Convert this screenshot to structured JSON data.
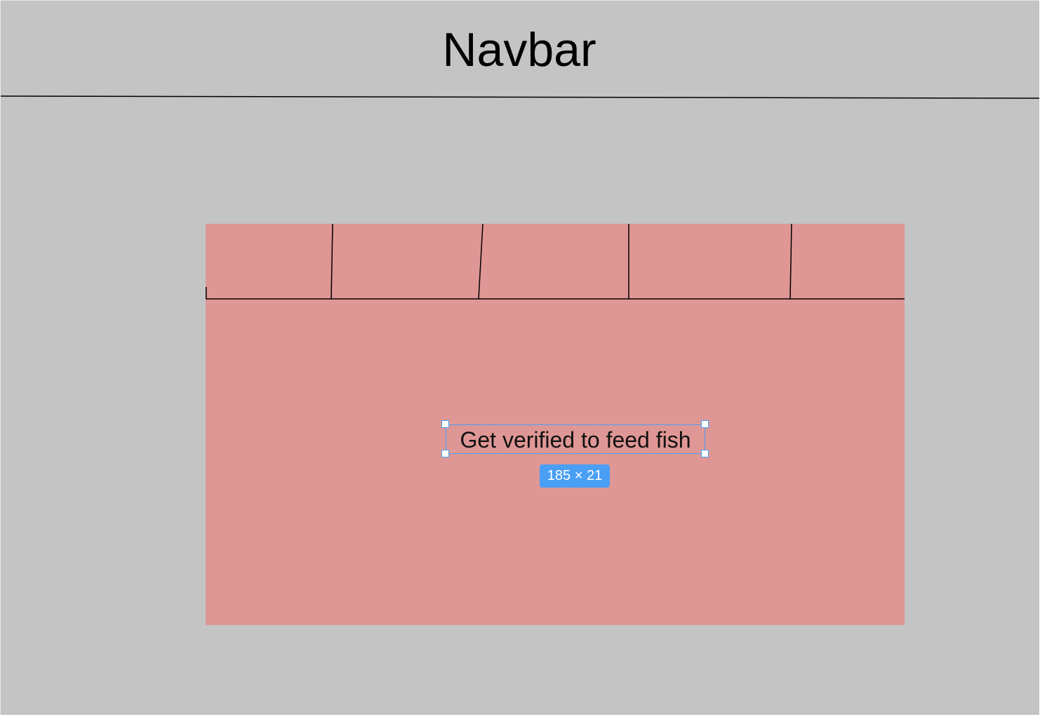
{
  "navbar": {
    "title": "Navbar"
  },
  "panel": {
    "tabs": [
      {
        "label": ""
      },
      {
        "label": ""
      },
      {
        "label": ""
      },
      {
        "label": ""
      },
      {
        "label": ""
      }
    ],
    "text": "Get verified to feed fish"
  },
  "selection": {
    "dimensions": "185 × 21"
  },
  "colors": {
    "canvas_background": "#c4c4c4",
    "panel_background": "#df9795",
    "selection_accent": "#4a9ff5",
    "line": "#000000"
  }
}
